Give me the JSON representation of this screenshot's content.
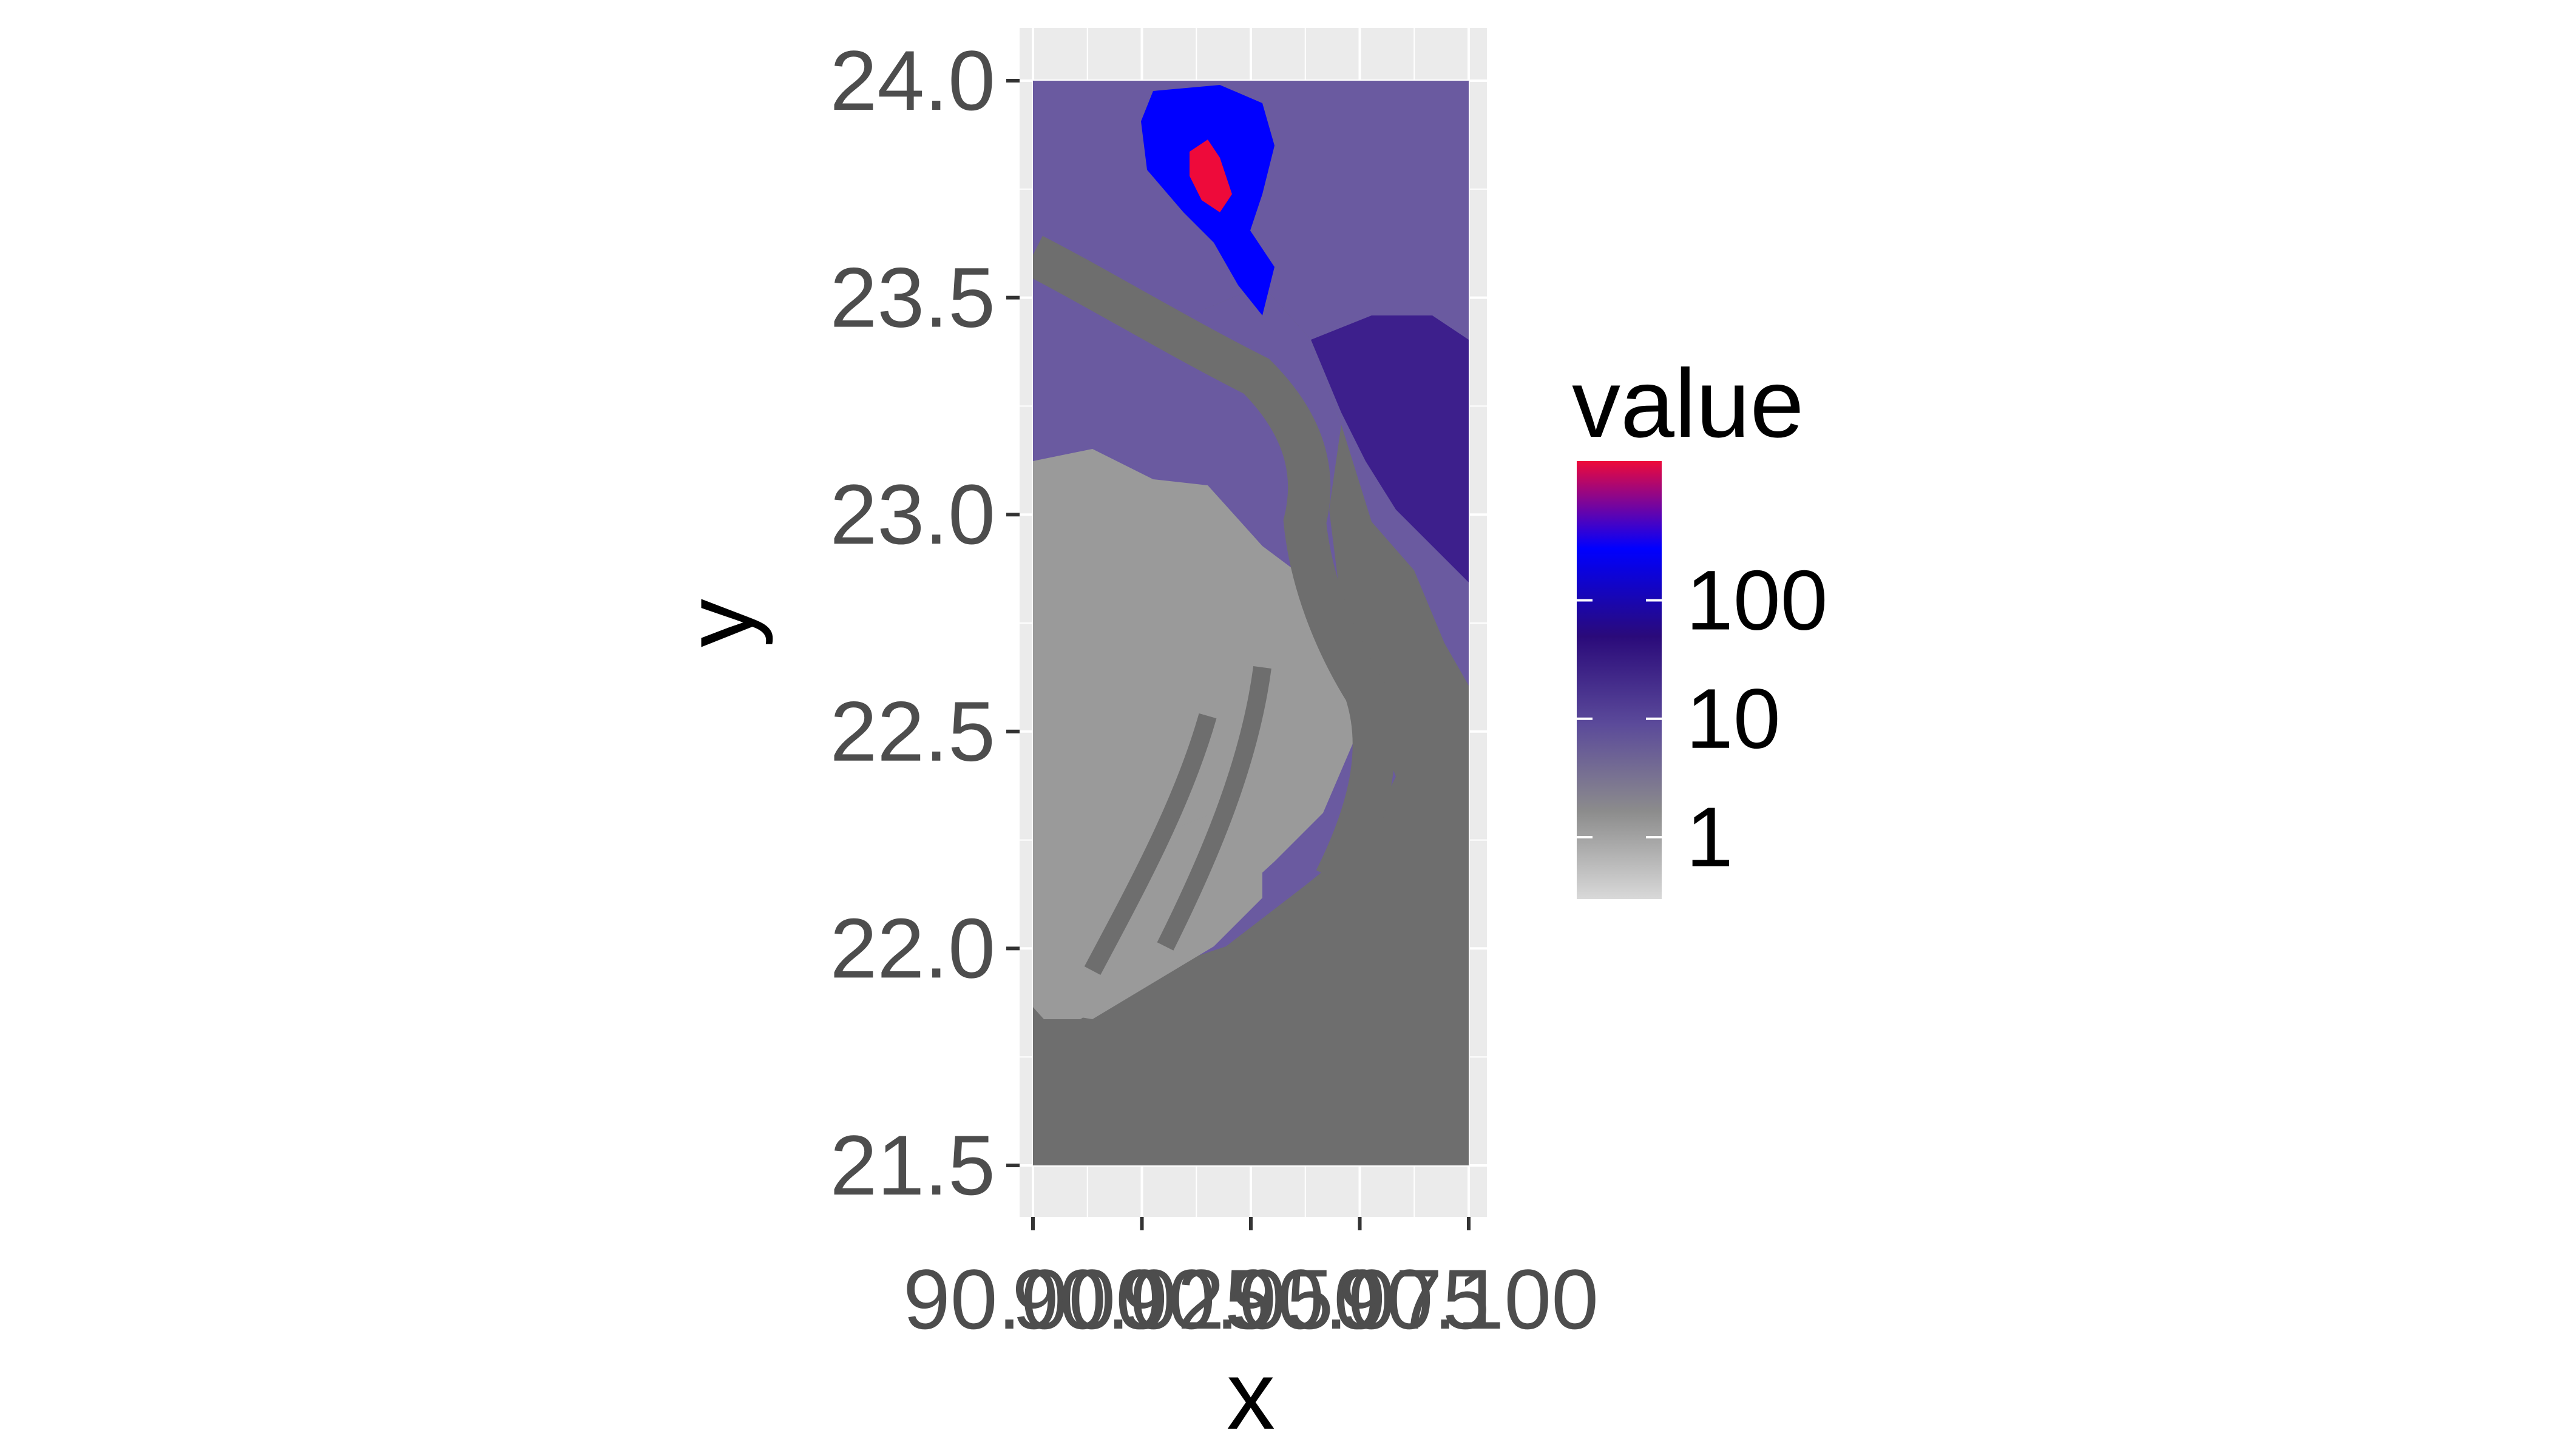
{
  "chart_data": {
    "type": "heatmap",
    "title": "",
    "xlabel": "x",
    "ylabel": "y",
    "xlim": [
      90.0,
      90.1
    ],
    "ylim": [
      21.5,
      24.0
    ],
    "x_ticks": [
      90.0,
      90.025,
      90.05,
      90.075,
      90.1
    ],
    "x_tick_labels": [
      "90.000",
      "90.025",
      "90.050",
      "90.075",
      "90.100"
    ],
    "y_ticks": [
      21.5,
      22.0,
      22.5,
      23.0,
      23.5,
      24.0
    ],
    "y_tick_labels": [
      "21.5",
      "22.0",
      "22.5",
      "23.0",
      "23.5",
      "24.0"
    ],
    "grid": true,
    "legend": {
      "title": "value",
      "placement": "right",
      "scale": "log",
      "labels": [
        "1",
        "10",
        "100"
      ],
      "label_values": [
        1,
        10,
        100
      ],
      "range": [
        0.3,
        1500
      ],
      "colors": [
        "#d9d9d9",
        "#8c8c8c",
        "#5b4a9a",
        "#2a0a7a",
        "#0000ff",
        "#ee0a3a"
      ]
    },
    "colors": {
      "panel": "#ebebeb",
      "grid": "#ffffff",
      "sea": "#6e6e6e",
      "low_land": "#9a9a9a",
      "mid_land": "#6a5aa0",
      "high_land": "#3d1f8c",
      "peak": "#ee0a3a"
    }
  }
}
